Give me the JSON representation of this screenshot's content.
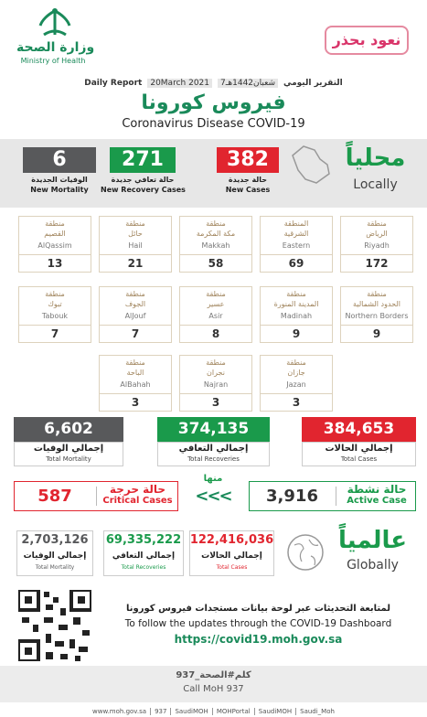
{
  "header": {
    "ministry_ar": "وزارة الصحة",
    "ministry_en": "Ministry of Health",
    "campaign": "نعود بحذر",
    "report_ar": "التقرير اليومي",
    "date_hijri": "7شعبان1442هـ",
    "date": "20March 2021",
    "report_en": "Daily Report",
    "title_ar": "فيروس كورونا",
    "title_en": "Coronavirus Disease COVID-19"
  },
  "local": {
    "heading_ar": "محلياً",
    "heading_en": "Locally",
    "new": [
      {
        "value": "6",
        "label_ar": "الوفيات الجديدة",
        "label_en": "New Mortality",
        "color": "#58595b"
      },
      {
        "value": "271",
        "label_ar": "حالة تعافي جديدة",
        "label_en": "New Recovery Cases",
        "color": "#1a9a4b"
      },
      {
        "value": "382",
        "label_ar": "حالة جديدة",
        "label_en": "New Cases",
        "color": "#e1252f"
      }
    ]
  },
  "regions": [
    [
      {
        "ar_top": "منطقة",
        "ar_name": "القصيم",
        "en": "AlQassim",
        "value": "13"
      },
      {
        "ar_top": "منطقة",
        "ar_name": "حائل",
        "en": "Hail",
        "value": "21"
      },
      {
        "ar_top": "منطقة",
        "ar_name": "مكة المكرمة",
        "en": "Makkah",
        "value": "58"
      },
      {
        "ar_top": "المنطقة",
        "ar_name": "الشرقية",
        "en": "Eastern",
        "value": "69"
      },
      {
        "ar_top": "منطقة",
        "ar_name": "الرياض",
        "en": "Riyadh",
        "value": "172"
      }
    ],
    [
      {
        "ar_top": "منطقة",
        "ar_name": "تبوك",
        "en": "Tabouk",
        "value": "7"
      },
      {
        "ar_top": "منطقة",
        "ar_name": "الجوف",
        "en": "AlJouf",
        "value": "7"
      },
      {
        "ar_top": "منطقة",
        "ar_name": "عسير",
        "en": "Asir",
        "value": "8"
      },
      {
        "ar_top": "منطقة",
        "ar_name": "المدينة المنورة",
        "en": "Madinah",
        "value": "9"
      },
      {
        "ar_top": "منطقة",
        "ar_name": "الحدود الشمالية",
        "en": "Northern Borders",
        "value": "9"
      }
    ],
    [
      {
        "ar_top": "منطقة",
        "ar_name": "الباحة",
        "en": "AlBahah",
        "value": "3"
      },
      {
        "ar_top": "منطقة",
        "ar_name": "نجران",
        "en": "Najran",
        "value": "3"
      },
      {
        "ar_top": "منطقة",
        "ar_name": "جازان",
        "en": "Jazan",
        "value": "3"
      }
    ]
  ],
  "totals": [
    {
      "value": "6,602",
      "label_ar": "إجمالي الوفيات",
      "label_en": "Total Mortality",
      "color": "#58595b"
    },
    {
      "value": "374,135",
      "label_ar": "إجمالي التعافي",
      "label_en": "Total Recoveries",
      "color": "#1a9a4b"
    },
    {
      "value": "384,653",
      "label_ar": "إجمالي الحالات",
      "label_en": "Total Cases",
      "color": "#e1252f"
    }
  ],
  "critical": {
    "value": "587",
    "label_ar": "حالة حرجة",
    "label_en": "Critical Cases",
    "color": "#e1252f"
  },
  "of_which": "منها",
  "arrows": "<<<",
  "active": {
    "value": "3,916",
    "label_ar": "حالة نشطة",
    "label_en": "Active Case",
    "color": "#1a9a4b"
  },
  "global": {
    "heading_ar": "عالمياً",
    "heading_en": "Globally",
    "totals": [
      {
        "value": "2,703,126",
        "label_ar": "إجمالي الوفيات",
        "label_en": "Total Mortality",
        "color": "#58595b"
      },
      {
        "value": "69,335,222",
        "label_ar": "إجمالي التعافي",
        "label_en": "Total Recoveries",
        "color": "#1a9a4b"
      },
      {
        "value": "122,416,036",
        "label_ar": "إجمالي الحالات",
        "label_en": "Total Cases",
        "color": "#e1252f"
      }
    ]
  },
  "dashboard": {
    "text_ar": "لمتابعة التحديثات عبر لوحة بيانات مستجدات فيروس كورونا",
    "text_en": "To follow the updates through the COVID-19 Dashboard",
    "url": "https://covid19.moh.gov.sa"
  },
  "call": {
    "text_ar": "كلم#الصحة_937",
    "text_en": "Call MoH 937"
  },
  "footer": [
    "www.moh.gov.sa",
    "937",
    "SaudiMOH",
    "MOHPortal",
    "SaudiMOH",
    "Saudi_Moh"
  ]
}
